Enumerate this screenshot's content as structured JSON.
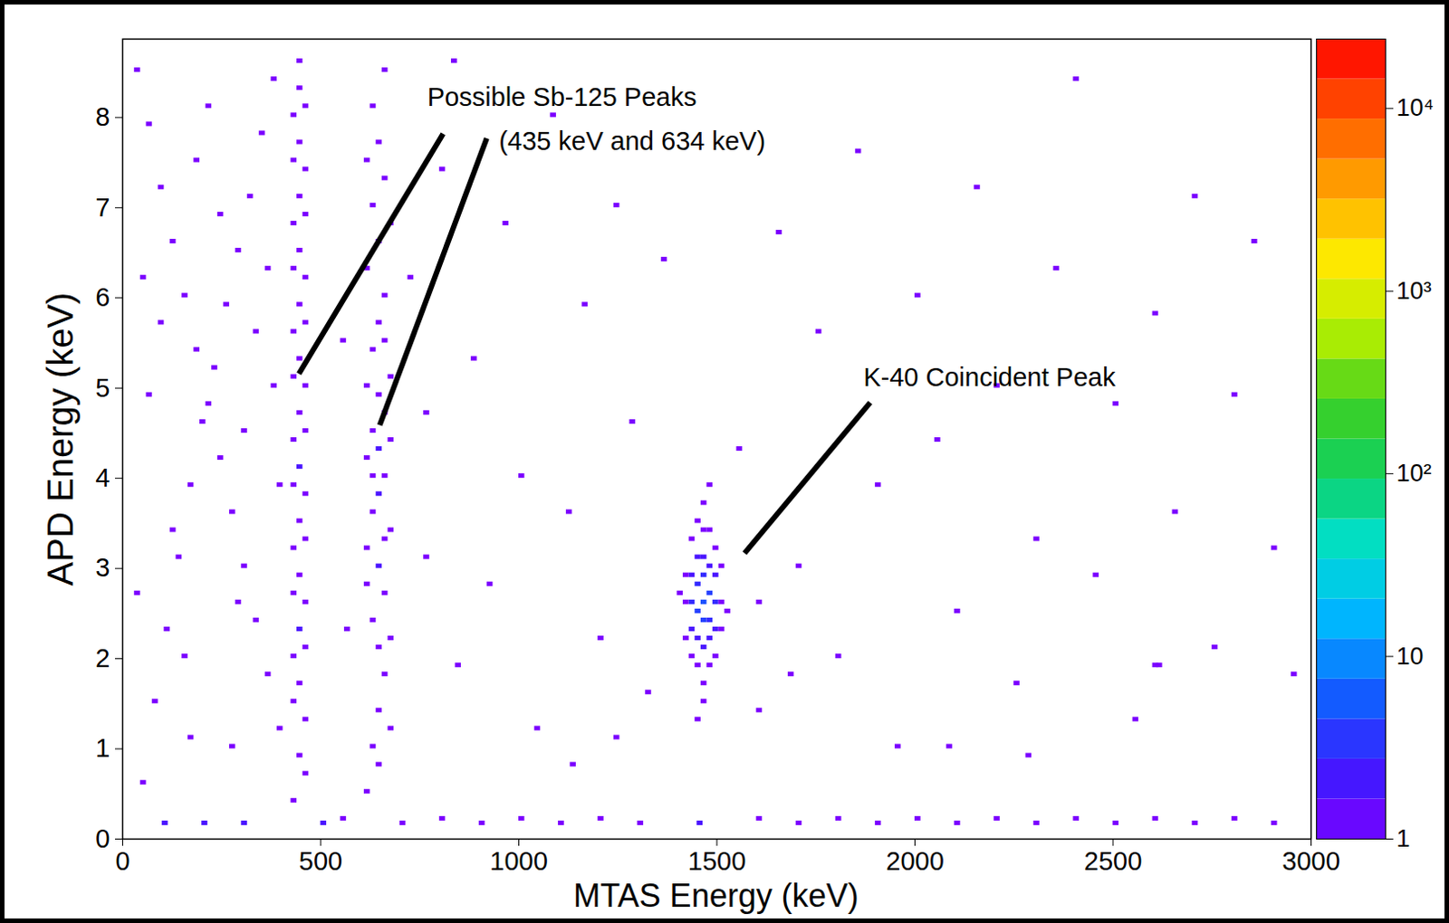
{
  "chart_data": {
    "type": "heatmap",
    "x_label": "MTAS Energy (keV)",
    "y_label": "APD Energy (keV)",
    "xlim": [
      0,
      3000
    ],
    "xticks": [
      0,
      500,
      1000,
      1500,
      2000,
      2500,
      3000
    ],
    "ylim": [
      0,
      8.87
    ],
    "yticks": [
      0,
      1,
      2,
      3,
      4,
      5,
      6,
      7,
      8
    ],
    "xbin": 15,
    "ybin": 0.05,
    "cells": [
      [
        425,
        0.4,
        1
      ],
      [
        440,
        0.9,
        1
      ],
      [
        455,
        1.3,
        1
      ],
      [
        440,
        1.7,
        1
      ],
      [
        425,
        2.0,
        1
      ],
      [
        440,
        2.3,
        2
      ],
      [
        455,
        2.6,
        1
      ],
      [
        440,
        2.9,
        1
      ],
      [
        425,
        3.2,
        1
      ],
      [
        440,
        3.5,
        1
      ],
      [
        455,
        3.8,
        1
      ],
      [
        440,
        4.1,
        2
      ],
      [
        425,
        4.4,
        1
      ],
      [
        440,
        4.7,
        1
      ],
      [
        455,
        5.0,
        1
      ],
      [
        440,
        5.3,
        1
      ],
      [
        425,
        5.6,
        1
      ],
      [
        440,
        5.9,
        1
      ],
      [
        455,
        6.2,
        1
      ],
      [
        440,
        6.5,
        1
      ],
      [
        425,
        6.8,
        1
      ],
      [
        440,
        7.1,
        1
      ],
      [
        455,
        7.4,
        1
      ],
      [
        440,
        7.7,
        1
      ],
      [
        425,
        8.0,
        1
      ],
      [
        440,
        8.3,
        1
      ],
      [
        440,
        8.6,
        1
      ],
      [
        455,
        0.7,
        1
      ],
      [
        425,
        1.5,
        1
      ],
      [
        455,
        2.1,
        1
      ],
      [
        425,
        2.7,
        1
      ],
      [
        455,
        3.3,
        1
      ],
      [
        425,
        3.9,
        1
      ],
      [
        455,
        4.5,
        1
      ],
      [
        425,
        5.1,
        1
      ],
      [
        455,
        5.7,
        1
      ],
      [
        425,
        6.3,
        1
      ],
      [
        455,
        6.9,
        1
      ],
      [
        425,
        7.5,
        1
      ],
      [
        455,
        8.1,
        1
      ],
      [
        610,
        0.5,
        1
      ],
      [
        625,
        1.0,
        1
      ],
      [
        640,
        1.4,
        1
      ],
      [
        655,
        1.8,
        1
      ],
      [
        640,
        2.1,
        1
      ],
      [
        625,
        2.4,
        1
      ],
      [
        655,
        2.7,
        1
      ],
      [
        640,
        3.0,
        2
      ],
      [
        610,
        3.2,
        1
      ],
      [
        670,
        3.4,
        1
      ],
      [
        625,
        3.6,
        1
      ],
      [
        640,
        3.8,
        2
      ],
      [
        655,
        4.0,
        1
      ],
      [
        610,
        4.2,
        1
      ],
      [
        640,
        4.3,
        2
      ],
      [
        625,
        4.5,
        1
      ],
      [
        655,
        4.7,
        1
      ],
      [
        640,
        4.9,
        1
      ],
      [
        670,
        5.1,
        1
      ],
      [
        625,
        5.4,
        1
      ],
      [
        640,
        5.7,
        1
      ],
      [
        655,
        6.0,
        1
      ],
      [
        610,
        6.3,
        1
      ],
      [
        640,
        6.6,
        1
      ],
      [
        625,
        7.0,
        1
      ],
      [
        655,
        7.3,
        1
      ],
      [
        640,
        7.7,
        1
      ],
      [
        625,
        8.1,
        1
      ],
      [
        655,
        8.5,
        1
      ],
      [
        670,
        2.2,
        1
      ],
      [
        610,
        2.8,
        1
      ],
      [
        670,
        1.2,
        1
      ],
      [
        640,
        0.8,
        1
      ],
      [
        655,
        3.3,
        1
      ],
      [
        625,
        4.0,
        1
      ],
      [
        670,
        4.4,
        1
      ],
      [
        610,
        5.0,
        1
      ],
      [
        655,
        5.5,
        1
      ],
      [
        670,
        6.8,
        1
      ],
      [
        610,
        7.5,
        1
      ],
      [
        1445,
        2.5,
        4
      ],
      [
        1460,
        2.6,
        5
      ],
      [
        1475,
        2.7,
        4
      ],
      [
        1460,
        2.4,
        4
      ],
      [
        1445,
        2.8,
        3
      ],
      [
        1475,
        2.4,
        3
      ],
      [
        1460,
        2.9,
        3
      ],
      [
        1430,
        2.6,
        3
      ],
      [
        1490,
        2.6,
        3
      ],
      [
        1445,
        2.2,
        2
      ],
      [
        1475,
        2.2,
        2
      ],
      [
        1460,
        2.1,
        2
      ],
      [
        1460,
        3.1,
        2
      ],
      [
        1430,
        2.9,
        2
      ],
      [
        1490,
        2.9,
        2
      ],
      [
        1430,
        2.3,
        2
      ],
      [
        1490,
        2.3,
        2
      ],
      [
        1445,
        3.1,
        2
      ],
      [
        1475,
        3.0,
        2
      ],
      [
        1415,
        2.6,
        1
      ],
      [
        1505,
        2.6,
        1
      ],
      [
        1415,
        2.9,
        1
      ],
      [
        1505,
        2.3,
        1
      ],
      [
        1445,
        1.9,
        1
      ],
      [
        1475,
        1.9,
        1
      ],
      [
        1460,
        1.7,
        1
      ],
      [
        1460,
        3.4,
        1
      ],
      [
        1430,
        3.3,
        1
      ],
      [
        1490,
        3.2,
        1
      ],
      [
        1415,
        2.2,
        1
      ],
      [
        1505,
        3.0,
        1
      ],
      [
        1430,
        2.0,
        1
      ],
      [
        1490,
        2.0,
        1
      ],
      [
        1445,
        3.5,
        1
      ],
      [
        1475,
        3.4,
        1
      ],
      [
        1400,
        2.7,
        1
      ],
      [
        1520,
        2.5,
        1
      ],
      [
        1460,
        1.5,
        1
      ],
      [
        1460,
        3.7,
        1
      ],
      [
        1445,
        1.3,
        1
      ],
      [
        1475,
        3.9,
        1
      ],
      [
        30,
        8.5,
        1
      ],
      [
        60,
        7.9,
        1
      ],
      [
        90,
        7.2,
        1
      ],
      [
        120,
        6.6,
        1
      ],
      [
        150,
        6.0,
        1
      ],
      [
        180,
        5.4,
        1
      ],
      [
        210,
        4.8,
        1
      ],
      [
        240,
        4.2,
        1
      ],
      [
        270,
        3.6,
        1
      ],
      [
        300,
        3.0,
        1
      ],
      [
        330,
        2.4,
        1
      ],
      [
        360,
        1.8,
        1
      ],
      [
        390,
        1.2,
        1
      ],
      [
        45,
        0.6,
        1
      ],
      [
        75,
        1.5,
        1
      ],
      [
        105,
        2.3,
        1
      ],
      [
        135,
        3.1,
        1
      ],
      [
        165,
        3.9,
        1
      ],
      [
        195,
        4.6,
        1
      ],
      [
        225,
        5.2,
        1
      ],
      [
        255,
        5.9,
        1
      ],
      [
        285,
        6.5,
        1
      ],
      [
        315,
        7.1,
        1
      ],
      [
        345,
        7.8,
        1
      ],
      [
        375,
        8.4,
        1
      ],
      [
        60,
        4.9,
        1
      ],
      [
        90,
        5.7,
        1
      ],
      [
        120,
        3.4,
        1
      ],
      [
        150,
        2.0,
        1
      ],
      [
        180,
        7.5,
        1
      ],
      [
        210,
        8.1,
        1
      ],
      [
        240,
        6.9,
        1
      ],
      [
        270,
        1.0,
        1
      ],
      [
        300,
        4.5,
        1
      ],
      [
        330,
        5.6,
        1
      ],
      [
        360,
        6.3,
        1
      ],
      [
        390,
        3.9,
        1
      ],
      [
        30,
        2.7,
        1
      ],
      [
        45,
        6.2,
        1
      ],
      [
        165,
        1.1,
        1
      ],
      [
        285,
        2.6,
        1
      ],
      [
        375,
        5.0,
        1
      ],
      [
        100,
        0.15,
        2
      ],
      [
        200,
        0.15,
        2
      ],
      [
        300,
        0.15,
        2
      ],
      [
        500,
        0.15,
        2
      ],
      [
        550,
        0.2,
        1
      ],
      [
        700,
        0.15,
        1
      ],
      [
        800,
        0.2,
        1
      ],
      [
        900,
        0.15,
        1
      ],
      [
        1000,
        0.2,
        1
      ],
      [
        1100,
        0.15,
        1
      ],
      [
        1200,
        0.2,
        1
      ],
      [
        1300,
        0.15,
        1
      ],
      [
        1450,
        0.15,
        2
      ],
      [
        1600,
        0.2,
        1
      ],
      [
        1700,
        0.15,
        1
      ],
      [
        1800,
        0.2,
        1
      ],
      [
        1900,
        0.15,
        1
      ],
      [
        2000,
        0.2,
        1
      ],
      [
        2100,
        0.15,
        1
      ],
      [
        2200,
        0.2,
        1
      ],
      [
        2300,
        0.15,
        1
      ],
      [
        2400,
        0.2,
        1
      ],
      [
        2500,
        0.15,
        1
      ],
      [
        2600,
        0.2,
        1
      ],
      [
        2700,
        0.15,
        1
      ],
      [
        2800,
        0.2,
        1
      ],
      [
        2900,
        0.15,
        1
      ],
      [
        720,
        6.2,
        1
      ],
      [
        760,
        3.1,
        1
      ],
      [
        800,
        7.4,
        1
      ],
      [
        840,
        1.9,
        1
      ],
      [
        880,
        5.3,
        1
      ],
      [
        920,
        2.8,
        1
      ],
      [
        960,
        6.8,
        1
      ],
      [
        1000,
        4.0,
        1
      ],
      [
        1040,
        1.2,
        1
      ],
      [
        1080,
        8.0,
        1
      ],
      [
        1120,
        3.6,
        1
      ],
      [
        1160,
        5.9,
        1
      ],
      [
        1200,
        2.2,
        1
      ],
      [
        1240,
        7.0,
        1
      ],
      [
        1280,
        4.6,
        1
      ],
      [
        1320,
        1.6,
        1
      ],
      [
        1360,
        6.4,
        1
      ],
      [
        1550,
        4.3,
        1
      ],
      [
        1600,
        1.4,
        1
      ],
      [
        1650,
        6.7,
        1
      ],
      [
        1700,
        3.0,
        1
      ],
      [
        1750,
        5.6,
        1
      ],
      [
        1800,
        2.0,
        1
      ],
      [
        1850,
        7.6,
        1
      ],
      [
        1900,
        3.9,
        1
      ],
      [
        1950,
        1.0,
        1
      ],
      [
        2000,
        6.0,
        1
      ],
      [
        2050,
        4.4,
        1
      ],
      [
        2100,
        2.5,
        1
      ],
      [
        2150,
        7.2,
        1
      ],
      [
        2200,
        5.0,
        1
      ],
      [
        2250,
        1.7,
        1
      ],
      [
        2300,
        3.3,
        1
      ],
      [
        2350,
        6.3,
        1
      ],
      [
        2400,
        8.4,
        1
      ],
      [
        2450,
        2.9,
        1
      ],
      [
        2500,
        4.8,
        1
      ],
      [
        2550,
        1.3,
        1
      ],
      [
        2600,
        5.8,
        1
      ],
      [
        2650,
        3.6,
        1
      ],
      [
        2700,
        7.1,
        1
      ],
      [
        2750,
        2.1,
        1
      ],
      [
        2800,
        4.9,
        1
      ],
      [
        2850,
        6.6,
        1
      ],
      [
        2900,
        3.2,
        1
      ],
      [
        2950,
        1.8,
        1
      ],
      [
        1240,
        1.1,
        1
      ],
      [
        1680,
        1.8,
        1
      ],
      [
        1130,
        0.8,
        1
      ],
      [
        1600,
        2.6,
        1
      ],
      [
        2280,
        0.9,
        1
      ],
      [
        2600,
        1.9,
        1
      ],
      [
        2610,
        1.9,
        1
      ],
      [
        2080,
        1.0,
        1
      ],
      [
        550,
        5.5,
        1
      ],
      [
        560,
        2.3,
        1
      ],
      [
        760,
        4.7,
        1
      ],
      [
        830,
        8.6,
        1
      ]
    ],
    "colorbar": {
      "log": true,
      "range": [
        1,
        24000
      ],
      "ticks": [
        1,
        10,
        {
          "value": 100,
          "label": "10²"
        },
        {
          "value": 1000,
          "label": "10³"
        },
        {
          "value": 10000,
          "label": "10⁴"
        }
      ]
    },
    "annotations": [
      {
        "text": "Possible Sb-125 Peaks",
        "x": 769,
        "y": 8.22,
        "arrows": [
          [
            809,
            7.82,
            445,
            5.16
          ]
        ]
      },
      {
        "text": "(435 keV and 634 keV)",
        "x": 950,
        "y": 7.73,
        "arrows": [
          [
            919,
            7.77,
            649,
            4.59
          ]
        ]
      },
      {
        "text": "K-40 Coincident Peak",
        "x": 1870,
        "y": 5.11,
        "arrows": [
          [
            1887,
            4.84,
            1570,
            3.17
          ]
        ]
      }
    ]
  }
}
